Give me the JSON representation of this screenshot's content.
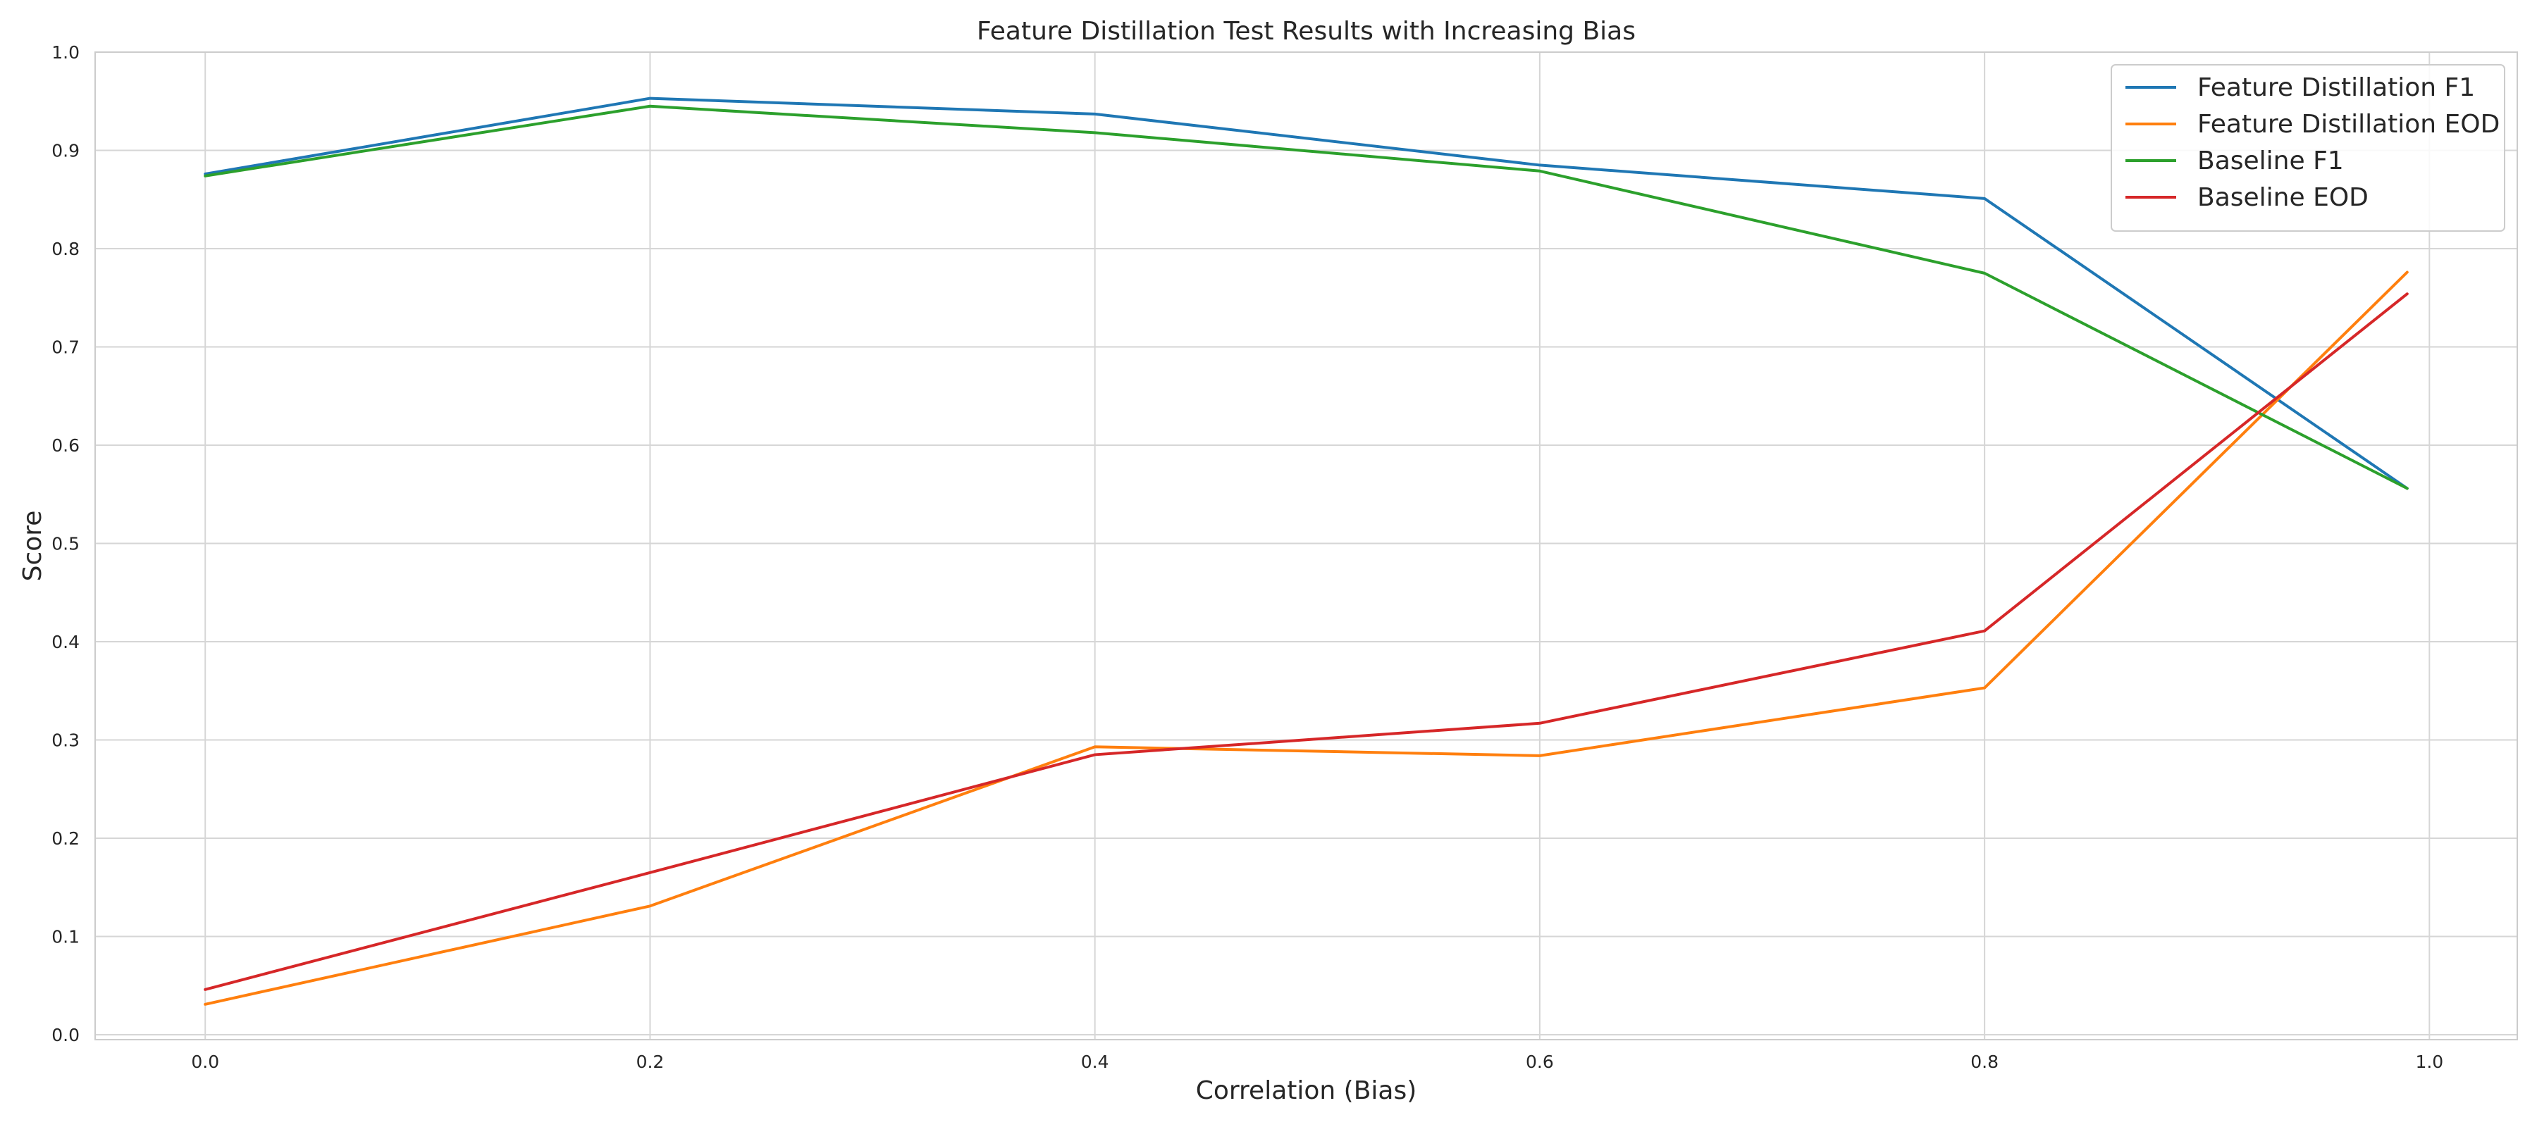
{
  "chart_data": {
    "type": "line",
    "title": "Feature Distillation Test Results with Increasing Bias",
    "xlabel": "Correlation (Bias)",
    "ylabel": "Score",
    "xlim": [
      -0.0495,
      1.0395
    ],
    "ylim": [
      -0.005,
      1.0
    ],
    "x_ticks": [
      "0.0",
      "0.2",
      "0.4",
      "0.6",
      "0.8",
      "1.0"
    ],
    "y_ticks": [
      "0.0",
      "0.1",
      "0.2",
      "0.3",
      "0.4",
      "0.5",
      "0.6",
      "0.7",
      "0.8",
      "0.9",
      "1.0"
    ],
    "grid": true,
    "legend_position": "top-right",
    "x": [
      0.0,
      0.2,
      0.4,
      0.6,
      0.8,
      0.99
    ],
    "series": [
      {
        "name": "Feature Distillation F1",
        "color": "#1f77b4",
        "values": [
          0.876,
          0.953,
          0.937,
          0.885,
          0.851,
          0.556
        ]
      },
      {
        "name": "Feature Distillation EOD",
        "color": "#ff7f0e",
        "values": [
          0.031,
          0.131,
          0.293,
          0.284,
          0.353,
          0.776
        ]
      },
      {
        "name": "Baseline F1",
        "color": "#2ca02c",
        "values": [
          0.874,
          0.945,
          0.918,
          0.879,
          0.775,
          0.556
        ]
      },
      {
        "name": "Baseline EOD",
        "color": "#d62728",
        "values": [
          0.046,
          0.165,
          0.285,
          0.317,
          0.411,
          0.754
        ]
      }
    ]
  }
}
